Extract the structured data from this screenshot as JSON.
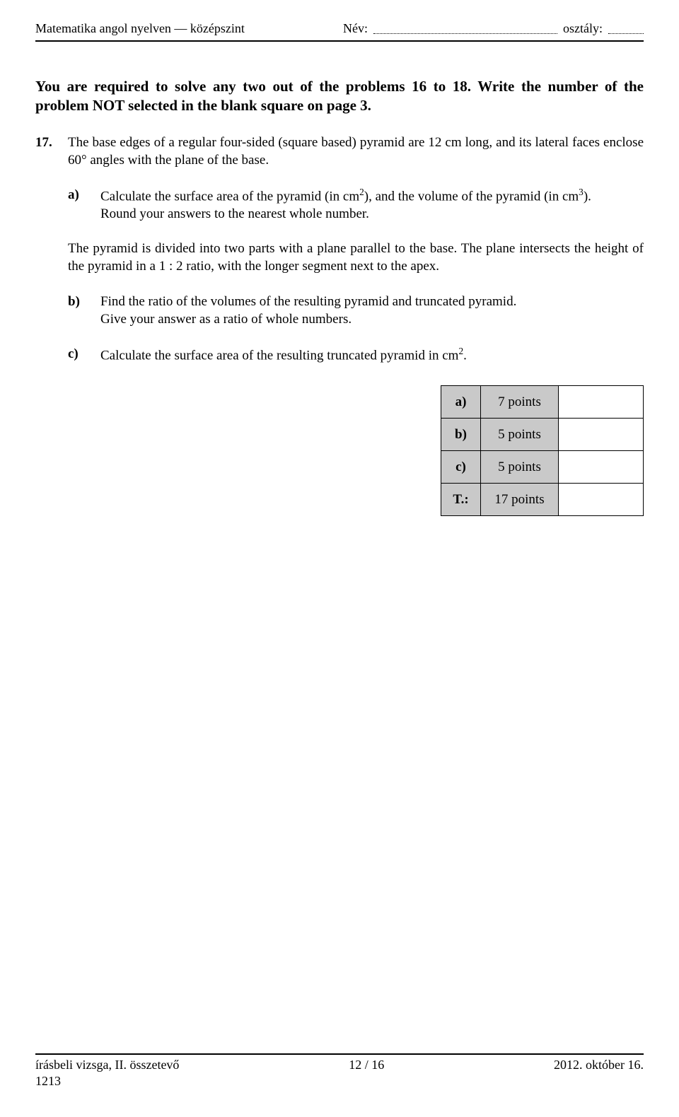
{
  "header": {
    "left": "Matematika angol nyelven — középszint",
    "name_label": "Név:",
    "class_label": "osztály:",
    "name_value": "",
    "class_value": ""
  },
  "instructions": "You are required to solve any two out of the problems 16 to 18. Write the number of the problem NOT selected in the blank square on page 3.",
  "problem": {
    "number": "17.",
    "intro": "The base edges of a regular four-sided (square based) pyramid are 12 cm long, and its lateral faces enclose 60° angles with the plane of the base.",
    "a_label": "a)",
    "a_text_pre": "Calculate the surface area of the pyramid (in cm",
    "a_exp1": "2",
    "a_text_mid": "), and the volume of the pyramid (in cm",
    "a_exp2": "3",
    "a_text_post": ").",
    "a_line2": "Round your answers to the nearest whole number.",
    "mid": "The pyramid is divided into two parts with a plane parallel to the base. The plane intersects the height of the pyramid in a 1 : 2 ratio, with the longer segment next to the apex.",
    "b_label": "b)",
    "b_line1": "Find the ratio of the volumes of the resulting pyramid and truncated pyramid.",
    "b_line2": "Give your answer as a ratio of whole numbers.",
    "c_label": "c)",
    "c_text_pre": "Calculate the surface area of the resulting truncated pyramid in cm",
    "c_exp": "2",
    "c_text_post": "."
  },
  "points": {
    "rows": [
      {
        "label": "a)",
        "pts": "7 points"
      },
      {
        "label": "b)",
        "pts": "5 points"
      },
      {
        "label": "c)",
        "pts": "5 points"
      },
      {
        "label": "T.:",
        "pts": "17 points"
      }
    ]
  },
  "footer": {
    "left": "írásbeli vizsga, II. összetevő",
    "center": "12 / 16",
    "right": "2012. október 16.",
    "code": "1213"
  }
}
